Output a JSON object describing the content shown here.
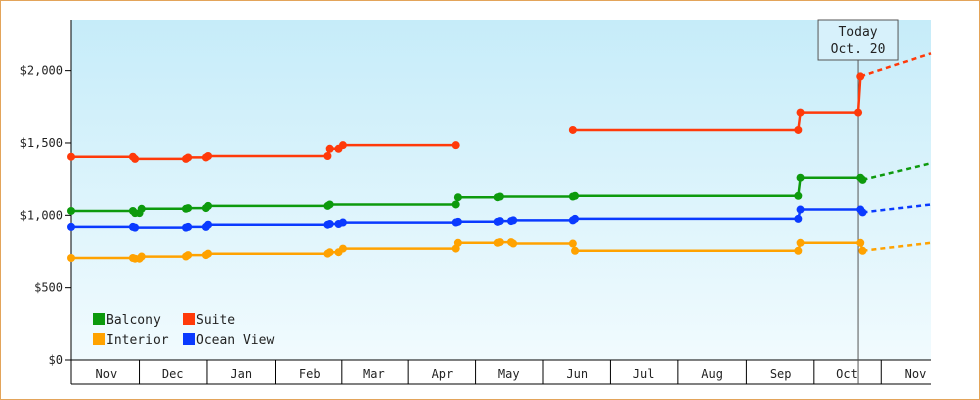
{
  "chart_data": {
    "type": "line",
    "step": true,
    "today_marker": {
      "line1": "Today",
      "line2": "Oct. 20",
      "date": "2024-10-20"
    },
    "x_axis": {
      "type": "date",
      "range": [
        "2023-10-30",
        "2024-11-22"
      ],
      "ticks": [
        {
          "label": "Nov",
          "date": "2023-11-15"
        },
        {
          "label": "Dec",
          "date": "2023-12-15"
        },
        {
          "label": "Jan",
          "date": "2024-01-15"
        },
        {
          "label": "Feb",
          "date": "2024-02-15"
        },
        {
          "label": "Mar",
          "date": "2024-03-15"
        },
        {
          "label": "Apr",
          "date": "2024-04-15"
        },
        {
          "label": "May",
          "date": "2024-05-15"
        },
        {
          "label": "Jun",
          "date": "2024-06-15"
        },
        {
          "label": "Jul",
          "date": "2024-07-15"
        },
        {
          "label": "Aug",
          "date": "2024-08-15"
        },
        {
          "label": "Sep",
          "date": "2024-09-15"
        },
        {
          "label": "Oct",
          "date": "2024-10-15"
        },
        {
          "label": "Nov",
          "date": "2024-11-15"
        }
      ]
    },
    "y_axis": {
      "ylim": [
        0,
        2350
      ],
      "ticks": [
        {
          "value": 0,
          "label": "$0"
        },
        {
          "value": 500,
          "label": "$500"
        },
        {
          "value": 1000,
          "label": "$1,000"
        },
        {
          "value": 1500,
          "label": "$1,500"
        },
        {
          "value": 2000,
          "label": "$2,000"
        }
      ]
    },
    "grid": false,
    "legend": {
      "placement": "bottom-left",
      "items": [
        {
          "label": "Balcony",
          "color": "#0d9a0d"
        },
        {
          "label": "Suite",
          "color": "#ff3a0a"
        },
        {
          "label": "Interior",
          "color": "#ffa200"
        },
        {
          "label": "Ocean View",
          "color": "#0a3aff"
        }
      ]
    },
    "series": [
      {
        "name": "Suite",
        "color": "#ff3a0a",
        "points": [
          [
            "2023-10-30",
            1405
          ],
          [
            "2023-11-27",
            1405
          ],
          [
            "2023-11-28",
            1390
          ],
          [
            "2023-12-21",
            1390
          ],
          [
            "2023-12-22",
            1400
          ],
          [
            "2023-12-30",
            1400
          ],
          [
            "2023-12-31",
            1410
          ],
          [
            "2024-02-23",
            1410
          ],
          [
            "2024-02-24",
            1460
          ],
          [
            "2024-02-28",
            1460
          ],
          [
            "2024-03-01",
            1485
          ],
          [
            "2024-04-21",
            1485
          ],
          null,
          [
            "2024-06-13",
            1590
          ],
          [
            "2024-09-23",
            1590
          ],
          [
            "2024-09-24",
            1710
          ],
          [
            "2024-10-20",
            1710
          ],
          [
            "2024-10-21",
            1960
          ]
        ],
        "forecast": [
          [
            "2024-10-21",
            1960
          ],
          [
            "2024-11-22",
            2120
          ]
        ]
      },
      {
        "name": "Balcony",
        "color": "#0d9a0d",
        "points": [
          [
            "2023-10-30",
            1030
          ],
          [
            "2023-11-27",
            1030
          ],
          [
            "2023-11-28",
            1015
          ],
          [
            "2023-11-30",
            1015
          ],
          [
            "2023-12-01",
            1045
          ],
          [
            "2023-12-21",
            1045
          ],
          [
            "2023-12-22",
            1050
          ],
          [
            "2023-12-30",
            1050
          ],
          [
            "2023-12-31",
            1065
          ],
          [
            "2024-02-23",
            1065
          ],
          [
            "2024-02-24",
            1075
          ],
          [
            "2024-04-21",
            1075
          ],
          [
            "2024-04-22",
            1125
          ],
          [
            "2024-05-10",
            1125
          ],
          [
            "2024-05-11",
            1130
          ],
          [
            "2024-06-13",
            1130
          ],
          [
            "2024-06-14",
            1135
          ],
          [
            "2024-09-23",
            1135
          ],
          [
            "2024-09-24",
            1260
          ],
          [
            "2024-10-21",
            1260
          ],
          [
            "2024-10-22",
            1245
          ]
        ],
        "forecast": [
          [
            "2024-10-22",
            1245
          ],
          [
            "2024-11-22",
            1360
          ]
        ]
      },
      {
        "name": "Ocean View",
        "color": "#0a3aff",
        "points": [
          [
            "2023-10-30",
            920
          ],
          [
            "2023-11-27",
            920
          ],
          [
            "2023-11-28",
            915
          ],
          [
            "2023-12-21",
            915
          ],
          [
            "2023-12-22",
            920
          ],
          [
            "2023-12-30",
            920
          ],
          [
            "2023-12-31",
            935
          ],
          [
            "2024-02-23",
            935
          ],
          [
            "2024-02-24",
            940
          ],
          [
            "2024-02-28",
            940
          ],
          [
            "2024-03-01",
            950
          ],
          [
            "2024-04-21",
            950
          ],
          [
            "2024-04-22",
            955
          ],
          [
            "2024-05-10",
            955
          ],
          [
            "2024-05-11",
            960
          ],
          [
            "2024-05-16",
            960
          ],
          [
            "2024-05-17",
            965
          ],
          [
            "2024-06-13",
            965
          ],
          [
            "2024-06-14",
            975
          ],
          [
            "2024-09-23",
            975
          ],
          [
            "2024-09-24",
            1040
          ],
          [
            "2024-10-21",
            1040
          ],
          [
            "2024-10-22",
            1020
          ]
        ],
        "forecast": [
          [
            "2024-10-22",
            1020
          ],
          [
            "2024-11-22",
            1075
          ]
        ]
      },
      {
        "name": "Interior",
        "color": "#ffa200",
        "points": [
          [
            "2023-10-30",
            705
          ],
          [
            "2023-11-27",
            705
          ],
          [
            "2023-11-28",
            700
          ],
          [
            "2023-11-30",
            700
          ],
          [
            "2023-12-01",
            715
          ],
          [
            "2023-12-21",
            715
          ],
          [
            "2023-12-22",
            725
          ],
          [
            "2023-12-30",
            725
          ],
          [
            "2023-12-31",
            735
          ],
          [
            "2024-02-23",
            735
          ],
          [
            "2024-02-24",
            745
          ],
          [
            "2024-02-28",
            745
          ],
          [
            "2024-03-01",
            770
          ],
          [
            "2024-04-21",
            770
          ],
          [
            "2024-04-22",
            810
          ],
          [
            "2024-05-10",
            810
          ],
          [
            "2024-05-11",
            815
          ],
          [
            "2024-05-16",
            815
          ],
          [
            "2024-05-17",
            805
          ],
          [
            "2024-06-13",
            805
          ],
          [
            "2024-06-14",
            755
          ],
          [
            "2024-09-23",
            755
          ],
          [
            "2024-09-24",
            810
          ],
          [
            "2024-10-21",
            810
          ],
          [
            "2024-10-22",
            755
          ]
        ],
        "forecast": [
          [
            "2024-10-22",
            755
          ],
          [
            "2024-11-22",
            810
          ]
        ]
      }
    ]
  }
}
